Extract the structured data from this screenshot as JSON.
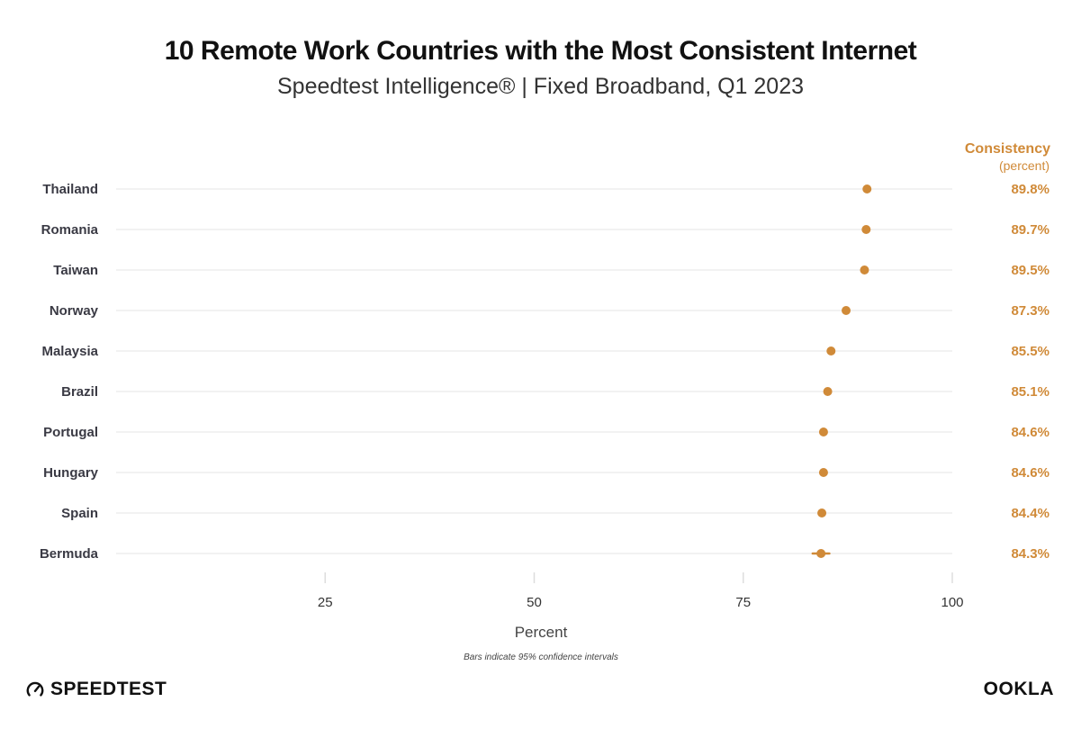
{
  "chart_data": {
    "type": "scatter",
    "title": "10 Remote Work Countries with the Most Consistent Internet",
    "subtitle": "Speedtest Intelligence® | Fixed Broadband, Q1 2023",
    "xlabel": "Percent",
    "xlim": [
      0,
      100
    ],
    "xticks": [
      25,
      50,
      75,
      100
    ],
    "note": "Bars indicate 95% confidence intervals",
    "value_column_title": "Consistency",
    "value_column_unit": "(percent)",
    "categories": [
      "Thailand",
      "Romania",
      "Taiwan",
      "Norway",
      "Malaysia",
      "Brazil",
      "Portugal",
      "Hungary",
      "Spain",
      "Bermuda"
    ],
    "values": [
      89.8,
      89.7,
      89.5,
      87.3,
      85.5,
      85.1,
      84.6,
      84.6,
      84.4,
      84.3
    ],
    "value_labels": [
      "89.8%",
      "89.7%",
      "89.5%",
      "87.3%",
      "85.5%",
      "85.1%",
      "84.6%",
      "84.6%",
      "84.4%",
      "84.3%"
    ],
    "ci_low": [
      89.7,
      89.6,
      89.4,
      87.1,
      85.3,
      84.9,
      84.4,
      84.4,
      84.2,
      83.3
    ],
    "ci_high": [
      89.9,
      89.8,
      89.6,
      87.5,
      85.7,
      85.3,
      84.8,
      84.8,
      84.6,
      85.3
    ],
    "colors": {
      "point": "#d08a38",
      "value_text": "#d08a38",
      "grid": "#eeeeee"
    }
  },
  "brand": {
    "left": "SPEEDTEST",
    "left_icon": "speedometer-icon",
    "right": "OOKLA"
  }
}
